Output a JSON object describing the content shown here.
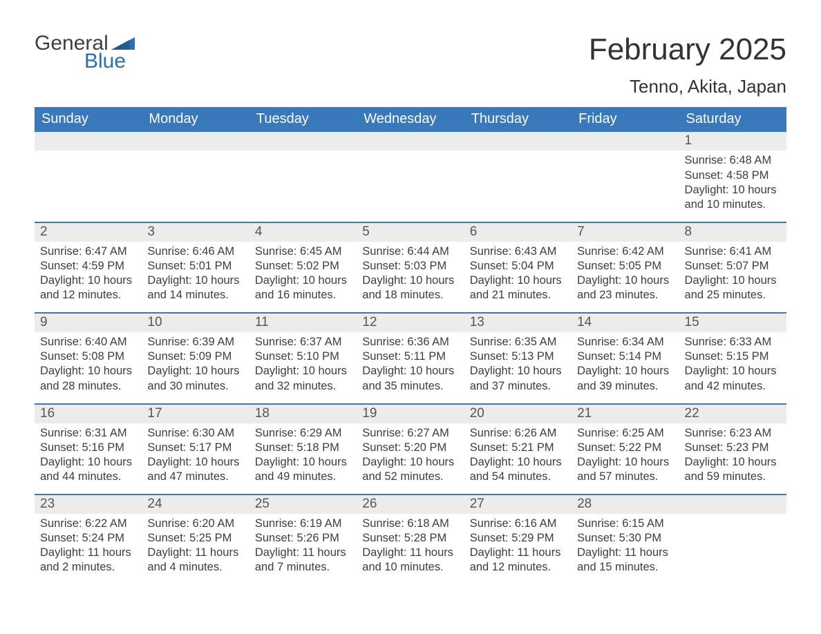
{
  "logo": {
    "line1": "General",
    "line2": "Blue"
  },
  "title": "February 2025",
  "location": "Tenno, Akita, Japan",
  "colors": {
    "header_bg": "#3a78bc",
    "header_text": "#ffffff",
    "daynum_bg": "#ececec",
    "daynum_text": "#555555",
    "body_text": "#3d3d3d",
    "rule": "#3a78bc",
    "logo_grey": "#3f3f3f",
    "logo_blue": "#2a6db3"
  },
  "weekdays": [
    "Sunday",
    "Monday",
    "Tuesday",
    "Wednesday",
    "Thursday",
    "Friday",
    "Saturday"
  ],
  "weeks": [
    [
      {
        "day": null
      },
      {
        "day": null
      },
      {
        "day": null
      },
      {
        "day": null
      },
      {
        "day": null
      },
      {
        "day": null
      },
      {
        "day": "1",
        "sunrise": "Sunrise: 6:48 AM",
        "sunset": "Sunset: 4:58 PM",
        "daylight": "Daylight: 10 hours and 10 minutes."
      }
    ],
    [
      {
        "day": "2",
        "sunrise": "Sunrise: 6:47 AM",
        "sunset": "Sunset: 4:59 PM",
        "daylight": "Daylight: 10 hours and 12 minutes."
      },
      {
        "day": "3",
        "sunrise": "Sunrise: 6:46 AM",
        "sunset": "Sunset: 5:01 PM",
        "daylight": "Daylight: 10 hours and 14 minutes."
      },
      {
        "day": "4",
        "sunrise": "Sunrise: 6:45 AM",
        "sunset": "Sunset: 5:02 PM",
        "daylight": "Daylight: 10 hours and 16 minutes."
      },
      {
        "day": "5",
        "sunrise": "Sunrise: 6:44 AM",
        "sunset": "Sunset: 5:03 PM",
        "daylight": "Daylight: 10 hours and 18 minutes."
      },
      {
        "day": "6",
        "sunrise": "Sunrise: 6:43 AM",
        "sunset": "Sunset: 5:04 PM",
        "daylight": "Daylight: 10 hours and 21 minutes."
      },
      {
        "day": "7",
        "sunrise": "Sunrise: 6:42 AM",
        "sunset": "Sunset: 5:05 PM",
        "daylight": "Daylight: 10 hours and 23 minutes."
      },
      {
        "day": "8",
        "sunrise": "Sunrise: 6:41 AM",
        "sunset": "Sunset: 5:07 PM",
        "daylight": "Daylight: 10 hours and 25 minutes."
      }
    ],
    [
      {
        "day": "9",
        "sunrise": "Sunrise: 6:40 AM",
        "sunset": "Sunset: 5:08 PM",
        "daylight": "Daylight: 10 hours and 28 minutes."
      },
      {
        "day": "10",
        "sunrise": "Sunrise: 6:39 AM",
        "sunset": "Sunset: 5:09 PM",
        "daylight": "Daylight: 10 hours and 30 minutes."
      },
      {
        "day": "11",
        "sunrise": "Sunrise: 6:37 AM",
        "sunset": "Sunset: 5:10 PM",
        "daylight": "Daylight: 10 hours and 32 minutes."
      },
      {
        "day": "12",
        "sunrise": "Sunrise: 6:36 AM",
        "sunset": "Sunset: 5:11 PM",
        "daylight": "Daylight: 10 hours and 35 minutes."
      },
      {
        "day": "13",
        "sunrise": "Sunrise: 6:35 AM",
        "sunset": "Sunset: 5:13 PM",
        "daylight": "Daylight: 10 hours and 37 minutes."
      },
      {
        "day": "14",
        "sunrise": "Sunrise: 6:34 AM",
        "sunset": "Sunset: 5:14 PM",
        "daylight": "Daylight: 10 hours and 39 minutes."
      },
      {
        "day": "15",
        "sunrise": "Sunrise: 6:33 AM",
        "sunset": "Sunset: 5:15 PM",
        "daylight": "Daylight: 10 hours and 42 minutes."
      }
    ],
    [
      {
        "day": "16",
        "sunrise": "Sunrise: 6:31 AM",
        "sunset": "Sunset: 5:16 PM",
        "daylight": "Daylight: 10 hours and 44 minutes."
      },
      {
        "day": "17",
        "sunrise": "Sunrise: 6:30 AM",
        "sunset": "Sunset: 5:17 PM",
        "daylight": "Daylight: 10 hours and 47 minutes."
      },
      {
        "day": "18",
        "sunrise": "Sunrise: 6:29 AM",
        "sunset": "Sunset: 5:18 PM",
        "daylight": "Daylight: 10 hours and 49 minutes."
      },
      {
        "day": "19",
        "sunrise": "Sunrise: 6:27 AM",
        "sunset": "Sunset: 5:20 PM",
        "daylight": "Daylight: 10 hours and 52 minutes."
      },
      {
        "day": "20",
        "sunrise": "Sunrise: 6:26 AM",
        "sunset": "Sunset: 5:21 PM",
        "daylight": "Daylight: 10 hours and 54 minutes."
      },
      {
        "day": "21",
        "sunrise": "Sunrise: 6:25 AM",
        "sunset": "Sunset: 5:22 PM",
        "daylight": "Daylight: 10 hours and 57 minutes."
      },
      {
        "day": "22",
        "sunrise": "Sunrise: 6:23 AM",
        "sunset": "Sunset: 5:23 PM",
        "daylight": "Daylight: 10 hours and 59 minutes."
      }
    ],
    [
      {
        "day": "23",
        "sunrise": "Sunrise: 6:22 AM",
        "sunset": "Sunset: 5:24 PM",
        "daylight": "Daylight: 11 hours and 2 minutes."
      },
      {
        "day": "24",
        "sunrise": "Sunrise: 6:20 AM",
        "sunset": "Sunset: 5:25 PM",
        "daylight": "Daylight: 11 hours and 4 minutes."
      },
      {
        "day": "25",
        "sunrise": "Sunrise: 6:19 AM",
        "sunset": "Sunset: 5:26 PM",
        "daylight": "Daylight: 11 hours and 7 minutes."
      },
      {
        "day": "26",
        "sunrise": "Sunrise: 6:18 AM",
        "sunset": "Sunset: 5:28 PM",
        "daylight": "Daylight: 11 hours and 10 minutes."
      },
      {
        "day": "27",
        "sunrise": "Sunrise: 6:16 AM",
        "sunset": "Sunset: 5:29 PM",
        "daylight": "Daylight: 11 hours and 12 minutes."
      },
      {
        "day": "28",
        "sunrise": "Sunrise: 6:15 AM",
        "sunset": "Sunset: 5:30 PM",
        "daylight": "Daylight: 11 hours and 15 minutes."
      },
      {
        "day": null
      }
    ]
  ]
}
